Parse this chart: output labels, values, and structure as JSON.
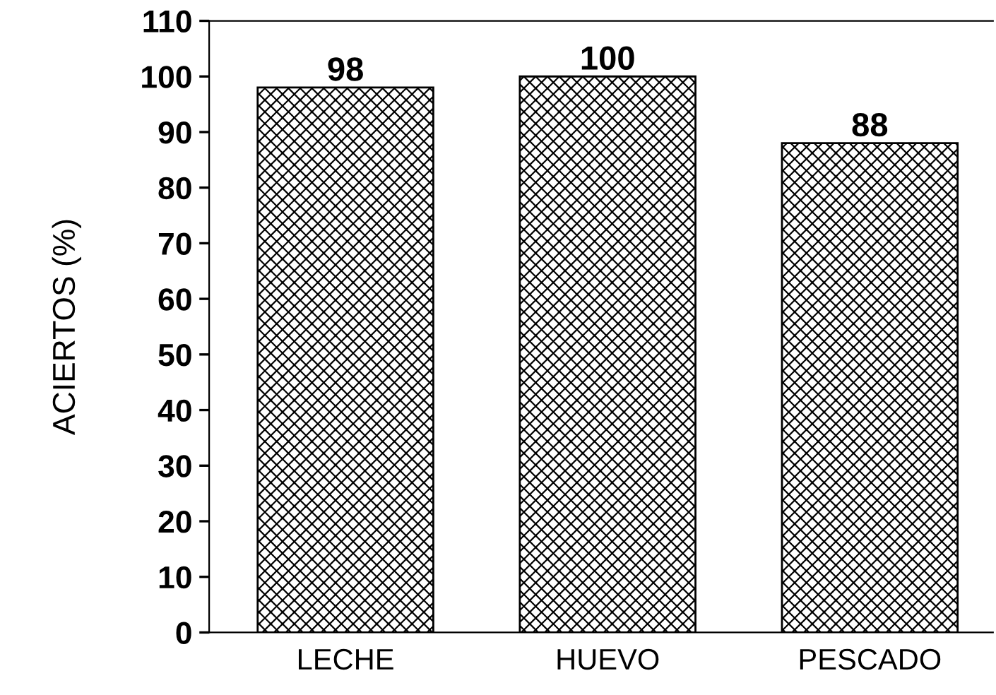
{
  "chart_data": {
    "type": "bar",
    "ylabel": "ACIERTOS (%)",
    "categories": [
      "LECHE",
      "HUEVO",
      "PESCADO"
    ],
    "values": [
      98,
      100,
      88
    ],
    "color": "#000000",
    "ylim": [
      0,
      110
    ],
    "yticks": [
      0,
      10,
      20,
      30,
      40,
      50,
      60,
      70,
      80,
      90,
      100,
      110
    ],
    "data_labels": true,
    "grid": false,
    "legend": false
  }
}
